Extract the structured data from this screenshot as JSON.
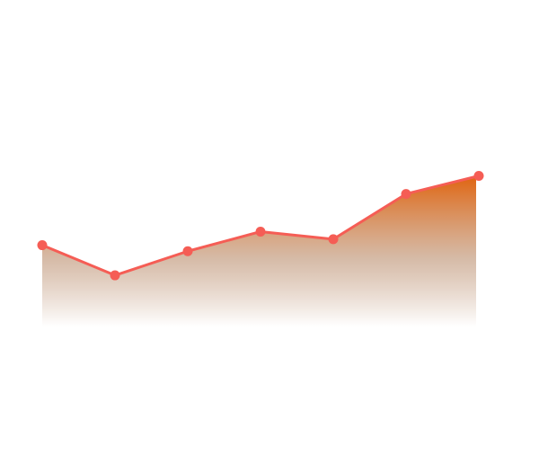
{
  "chart_data": {
    "type": "area",
    "x": [
      1,
      2,
      3,
      4,
      5,
      6,
      7
    ],
    "series": [
      {
        "values": [
          27,
          17,
          25,
          31.5,
          29,
          44,
          50
        ]
      }
    ],
    "ylim": [
      0,
      100
    ],
    "grid": false,
    "axes_visible": false,
    "colors": {
      "line": "#f55d55",
      "marker": "#f55d55",
      "fill_top": "#e06410",
      "fill_bottom": "#ffffff"
    }
  }
}
